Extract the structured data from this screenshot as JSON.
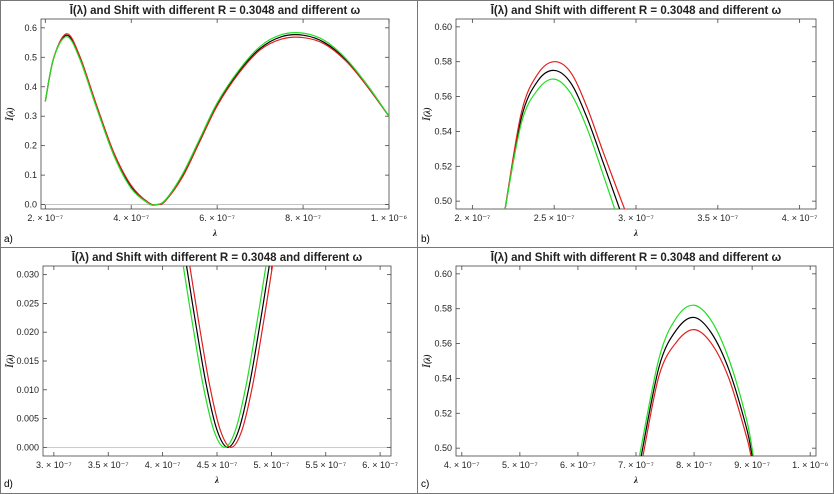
{
  "panels": [
    {
      "id": "a",
      "corner_label": "a)",
      "title": "Ī(λ) and Shift with different R = 0.3048 and different ω",
      "chart_data": {
        "type": "line",
        "title": "Ī(λ) and Shift with different R = 0.3048 and different ω",
        "xlabel": "λ",
        "ylabel": "Ī(λ)",
        "xlim": [
          1.9e-07,
          1e-06
        ],
        "ylim": [
          -0.015,
          0.63
        ],
        "xticks": [
          2e-07,
          4e-07,
          6e-07,
          8e-07,
          1e-06
        ],
        "xtick_labels": [
          "2. × 10⁻⁷",
          "4. × 10⁻⁷",
          "6. × 10⁻⁷",
          "8. × 10⁻⁷",
          "1. × 10⁻⁶"
        ],
        "yticks": [
          0.0,
          0.1,
          0.2,
          0.3,
          0.4,
          0.5,
          0.6
        ],
        "ytick_labels": [
          "0.0",
          "0.1",
          "0.2",
          "0.3",
          "0.4",
          "0.5",
          "0.6"
        ],
        "series": [
          {
            "name": "black",
            "color": "#000000",
            "points": [
              [
                2e-07,
                0.35
              ],
              [
                2.2e-07,
                0.5
              ],
              [
                2.5e-07,
                0.575
              ],
              [
                2.8e-07,
                0.5
              ],
              [
                3.2e-07,
                0.33
              ],
              [
                3.6e-07,
                0.17
              ],
              [
                4e-07,
                0.06
              ],
              [
                4.4e-07,
                0.005
              ],
              [
                4.6e-07,
                0.0
              ],
              [
                4.8e-07,
                0.015
              ],
              [
                5.2e-07,
                0.1
              ],
              [
                5.6e-07,
                0.22
              ],
              [
                6e-07,
                0.34
              ],
              [
                6.5e-07,
                0.45
              ],
              [
                7e-07,
                0.53
              ],
              [
                7.5e-07,
                0.57
              ],
              [
                8e-07,
                0.575
              ],
              [
                8.5e-07,
                0.55
              ],
              [
                9e-07,
                0.49
              ],
              [
                9.5e-07,
                0.4
              ],
              [
                1e-06,
                0.3
              ]
            ]
          },
          {
            "name": "red",
            "color": "#e02020",
            "points": [
              [
                2e-07,
                0.35
              ],
              [
                2.2e-07,
                0.5
              ],
              [
                2.5e-07,
                0.58
              ],
              [
                2.8e-07,
                0.505
              ],
              [
                3.2e-07,
                0.335
              ],
              [
                3.6e-07,
                0.175
              ],
              [
                4e-07,
                0.065
              ],
              [
                4.4e-07,
                0.007
              ],
              [
                4.62e-07,
                0.0
              ],
              [
                4.8e-07,
                0.013
              ],
              [
                5.2e-07,
                0.095
              ],
              [
                5.6e-07,
                0.215
              ],
              [
                6e-07,
                0.335
              ],
              [
                6.5e-07,
                0.445
              ],
              [
                7e-07,
                0.525
              ],
              [
                7.5e-07,
                0.562
              ],
              [
                8e-07,
                0.567
              ],
              [
                8.5e-07,
                0.545
              ],
              [
                9e-07,
                0.487
              ],
              [
                9.5e-07,
                0.4
              ],
              [
                1e-06,
                0.3
              ]
            ]
          },
          {
            "name": "green",
            "color": "#22dd22",
            "points": [
              [
                2e-07,
                0.35
              ],
              [
                2.2e-07,
                0.5
              ],
              [
                2.5e-07,
                0.57
              ],
              [
                2.8e-07,
                0.495
              ],
              [
                3.2e-07,
                0.325
              ],
              [
                3.6e-07,
                0.165
              ],
              [
                4e-07,
                0.055
              ],
              [
                4.4e-07,
                0.004
              ],
              [
                4.58e-07,
                0.0
              ],
              [
                4.8e-07,
                0.017
              ],
              [
                5.2e-07,
                0.105
              ],
              [
                5.6e-07,
                0.225
              ],
              [
                6e-07,
                0.345
              ],
              [
                6.5e-07,
                0.455
              ],
              [
                7e-07,
                0.537
              ],
              [
                7.5e-07,
                0.577
              ],
              [
                8e-07,
                0.582
              ],
              [
                8.5e-07,
                0.557
              ],
              [
                9e-07,
                0.495
              ],
              [
                9.5e-07,
                0.405
              ],
              [
                1e-06,
                0.3
              ]
            ]
          }
        ]
      }
    },
    {
      "id": "b",
      "corner_label": "b)",
      "title": "Ī(λ) and Shift with different R = 0.3048 and different ω",
      "chart_data": {
        "type": "line",
        "title": "Ī(λ) and Shift with different R = 0.3048 and different ω",
        "xlabel": "λ",
        "ylabel": "Ī(λ)",
        "xlim": [
          1.9e-07,
          4.1e-07
        ],
        "ylim": [
          0.4955,
          0.6045
        ],
        "xticks": [
          2e-07,
          2.5e-07,
          3e-07,
          3.5e-07,
          4e-07
        ],
        "xtick_labels": [
          "2. × 10⁻⁷",
          "2.5 × 10⁻⁷",
          "3. × 10⁻⁷",
          "3.5 × 10⁻⁷",
          "4. × 10⁻⁷"
        ],
        "yticks": [
          0.5,
          0.52,
          0.54,
          0.56,
          0.58,
          0.6
        ],
        "ytick_labels": [
          "0.50",
          "0.52",
          "0.54",
          "0.56",
          "0.58",
          "0.60"
        ],
        "series": [
          {
            "name": "black",
            "color": "#000000",
            "points": [
              [
                2.2e-07,
                0.4955
              ],
              [
                2.3e-07,
                0.548
              ],
              [
                2.4e-07,
                0.569
              ],
              [
                2.5e-07,
                0.575
              ],
              [
                2.6e-07,
                0.568
              ],
              [
                2.7e-07,
                0.548
              ],
              [
                2.8e-07,
                0.522
              ],
              [
                2.9e-07,
                0.4955
              ]
            ]
          },
          {
            "name": "red",
            "color": "#e02020",
            "points": [
              [
                2.2e-07,
                0.4955
              ],
              [
                2.3e-07,
                0.551
              ],
              [
                2.4e-07,
                0.573
              ],
              [
                2.5e-07,
                0.58
              ],
              [
                2.6e-07,
                0.574
              ],
              [
                2.7e-07,
                0.554
              ],
              [
                2.8e-07,
                0.528
              ],
              [
                2.93e-07,
                0.4955
              ]
            ]
          },
          {
            "name": "green",
            "color": "#22dd22",
            "points": [
              [
                2.2e-07,
                0.4955
              ],
              [
                2.3e-07,
                0.545
              ],
              [
                2.4e-07,
                0.564
              ],
              [
                2.5e-07,
                0.57
              ],
              [
                2.6e-07,
                0.562
              ],
              [
                2.7e-07,
                0.542
              ],
              [
                2.8e-07,
                0.515
              ],
              [
                2.87e-07,
                0.4955
              ]
            ]
          }
        ]
      }
    },
    {
      "id": "d",
      "corner_label": "d)",
      "title": "Ī(λ) and Shift with different R = 0.3048 and different ω",
      "chart_data": {
        "type": "line",
        "title": "Ī(λ) and Shift with different R = 0.3048 and different ω",
        "xlabel": "λ",
        "ylabel": "Ī(λ)",
        "xlim": [
          2.9e-07,
          6.1e-07
        ],
        "ylim": [
          -0.0015,
          0.0315
        ],
        "xticks": [
          3e-07,
          3.5e-07,
          4e-07,
          4.5e-07,
          5e-07,
          5.5e-07,
          6e-07
        ],
        "xtick_labels": [
          "3. × 10⁻⁷",
          "3.5 × 10⁻⁷",
          "4. × 10⁻⁷",
          "4.5 × 10⁻⁷",
          "5. × 10⁻⁷",
          "5.5 × 10⁻⁷",
          "6. × 10⁻⁷"
        ],
        "yticks": [
          0.0,
          0.005,
          0.01,
          0.015,
          0.02,
          0.025,
          0.03
        ],
        "ytick_labels": [
          "0.000",
          "0.005",
          "0.010",
          "0.015",
          "0.020",
          "0.025",
          "0.030"
        ],
        "series": [
          {
            "name": "black",
            "color": "#000000",
            "points": [
              [
                4.22e-07,
                0.0315
              ],
              [
                4.3e-07,
                0.022
              ],
              [
                4.4e-07,
                0.011
              ],
              [
                4.5e-07,
                0.003
              ],
              [
                4.6e-07,
                0.0
              ],
              [
                4.7e-07,
                0.003
              ],
              [
                4.8e-07,
                0.011
              ],
              [
                4.9e-07,
                0.022
              ],
              [
                4.98e-07,
                0.0315
              ]
            ]
          },
          {
            "name": "red",
            "color": "#e02020",
            "points": [
              [
                4.25e-07,
                0.0315
              ],
              [
                4.33e-07,
                0.022
              ],
              [
                4.43e-07,
                0.011
              ],
              [
                4.53e-07,
                0.003
              ],
              [
                4.63e-07,
                0.0
              ],
              [
                4.73e-07,
                0.003
              ],
              [
                4.83e-07,
                0.011
              ],
              [
                4.93e-07,
                0.022
              ],
              [
                5.01e-07,
                0.0315
              ]
            ]
          },
          {
            "name": "green",
            "color": "#22dd22",
            "points": [
              [
                4.19e-07,
                0.0315
              ],
              [
                4.27e-07,
                0.022
              ],
              [
                4.37e-07,
                0.011
              ],
              [
                4.47e-07,
                0.003
              ],
              [
                4.57e-07,
                0.0
              ],
              [
                4.67e-07,
                0.003
              ],
              [
                4.77e-07,
                0.011
              ],
              [
                4.87e-07,
                0.022
              ],
              [
                4.95e-07,
                0.0315
              ]
            ]
          }
        ]
      }
    },
    {
      "id": "c",
      "corner_label": "c)",
      "title": "Ī(λ) and Shift with different R = 0.3048 and different ω",
      "chart_data": {
        "type": "line",
        "title": "Ī(λ) and Shift with different R = 0.3048 and different ω",
        "xlabel": "λ",
        "ylabel": "Ī(λ)",
        "xlim": [
          3.9e-07,
          1.01e-06
        ],
        "ylim": [
          0.4955,
          0.6045
        ],
        "xticks": [
          4e-07,
          5e-07,
          6e-07,
          7e-07,
          8e-07,
          9e-07,
          1e-06
        ],
        "xtick_labels": [
          "4. × 10⁻⁷",
          "5. × 10⁻⁷",
          "6. × 10⁻⁷",
          "7. × 10⁻⁷",
          "8. × 10⁻⁷",
          "9. × 10⁻⁷",
          "1. × 10⁻⁶"
        ],
        "yticks": [
          0.5,
          0.52,
          0.54,
          0.56,
          0.58,
          0.6
        ],
        "ytick_labels": [
          "0.50",
          "0.52",
          "0.54",
          "0.56",
          "0.58",
          "0.60"
        ],
        "series": [
          {
            "name": "black",
            "color": "#000000",
            "points": [
              [
                7.09e-07,
                0.4955
              ],
              [
                7.4e-07,
                0.547
              ],
              [
                7.7e-07,
                0.568
              ],
              [
                8e-07,
                0.575
              ],
              [
                8.3e-07,
                0.566
              ],
              [
                8.6e-07,
                0.545
              ],
              [
                8.9e-07,
                0.512
              ],
              [
                9e-07,
                0.4955
              ]
            ]
          },
          {
            "name": "red",
            "color": "#e02020",
            "points": [
              [
                7.12e-07,
                0.4955
              ],
              [
                7.4e-07,
                0.542
              ],
              [
                7.7e-07,
                0.561
              ],
              [
                8e-07,
                0.568
              ],
              [
                8.3e-07,
                0.56
              ],
              [
                8.6e-07,
                0.54
              ],
              [
                8.9e-07,
                0.507
              ],
              [
                8.98e-07,
                0.4955
              ]
            ]
          },
          {
            "name": "green",
            "color": "#22dd22",
            "points": [
              [
                7.06e-07,
                0.4955
              ],
              [
                7.4e-07,
                0.552
              ],
              [
                7.7e-07,
                0.575
              ],
              [
                8e-07,
                0.582
              ],
              [
                8.3e-07,
                0.573
              ],
              [
                8.6e-07,
                0.551
              ],
              [
                8.9e-07,
                0.517
              ],
              [
                9.02e-07,
                0.4955
              ]
            ]
          }
        ]
      }
    }
  ]
}
